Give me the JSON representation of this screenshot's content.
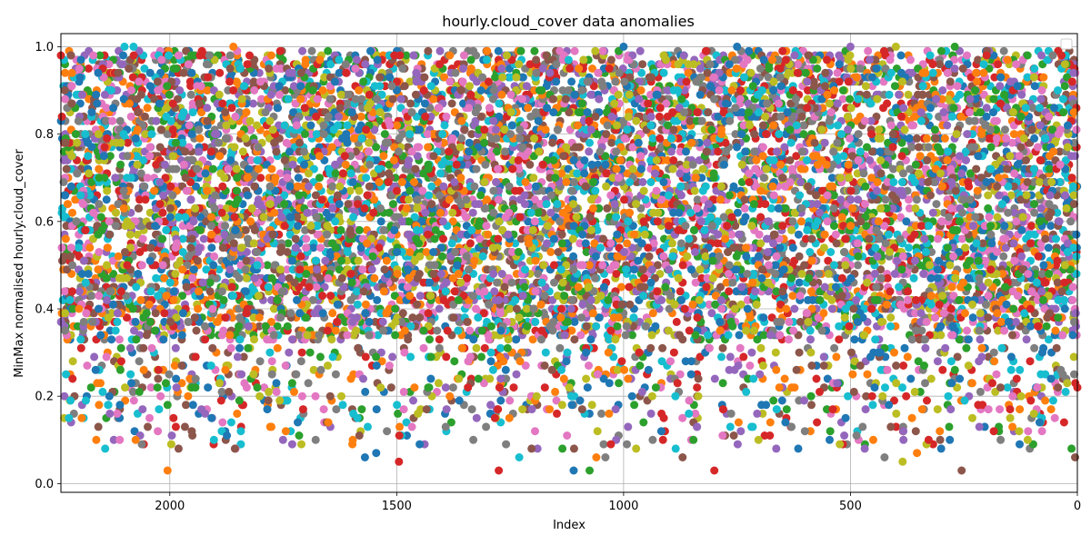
{
  "chart_data": {
    "type": "scatter",
    "title": "hourly.cloud_cover data anomalies",
    "xlabel": "Index",
    "ylabel": "MinMax normalised hourly.cloud_cover",
    "xlim": [
      2240,
      0
    ],
    "ylim": [
      -0.02,
      1.03
    ],
    "x_axis_inverted": true,
    "x_ticks": [
      2000,
      1500,
      1000,
      500,
      0
    ],
    "x_tick_labels": [
      "2000",
      "1500",
      "1000",
      "500",
      "0"
    ],
    "y_ticks": [
      0.0,
      0.2,
      0.4,
      0.6,
      0.8,
      1.0
    ],
    "y_tick_labels": [
      "0.0",
      "0.2",
      "0.4",
      "0.6",
      "0.8",
      "1.0"
    ],
    "grid": true,
    "legend": {
      "placement": "upper right",
      "entries": []
    },
    "colors": [
      "#1f77b4",
      "#ff7f0e",
      "#2ca02c",
      "#d62728",
      "#9467bd",
      "#8c564b",
      "#e377c2",
      "#7f7f7f",
      "#bcbd22",
      "#17becf"
    ],
    "index_range": [
      0,
      2240
    ],
    "dense_band": {
      "min": 0.33,
      "max": 0.99,
      "note_value_max": 1.0
    },
    "sparse_band": {
      "min": 0.05,
      "max": 0.31
    },
    "isolated_points": [
      {
        "x": 2005,
        "y": 0.03
      },
      {
        "x": 1275,
        "y": 0.03
      },
      {
        "x": 1110,
        "y": 0.03
      },
      {
        "x": 1075,
        "y": 0.03
      },
      {
        "x": 800,
        "y": 0.03
      },
      {
        "x": 255,
        "y": 0.03
      },
      {
        "x": 1040,
        "y": 0.06
      },
      {
        "x": 1060,
        "y": 0.06
      },
      {
        "x": 1570,
        "y": 0.06
      },
      {
        "x": 1230,
        "y": 0.06
      },
      {
        "x": 870,
        "y": 0.06
      },
      {
        "x": 425,
        "y": 0.06
      },
      {
        "x": 5,
        "y": 0.06
      },
      {
        "x": 1495,
        "y": 0.05
      },
      {
        "x": 385,
        "y": 0.05
      },
      {
        "x": 2100,
        "y": 1.0
      },
      {
        "x": 2080,
        "y": 1.0
      },
      {
        "x": 1860,
        "y": 1.0
      },
      {
        "x": 1000,
        "y": 1.0
      },
      {
        "x": 500,
        "y": 1.0
      },
      {
        "x": 400,
        "y": 1.0
      },
      {
        "x": 270,
        "y": 1.0
      },
      {
        "x": 750,
        "y": 1.0
      }
    ]
  }
}
